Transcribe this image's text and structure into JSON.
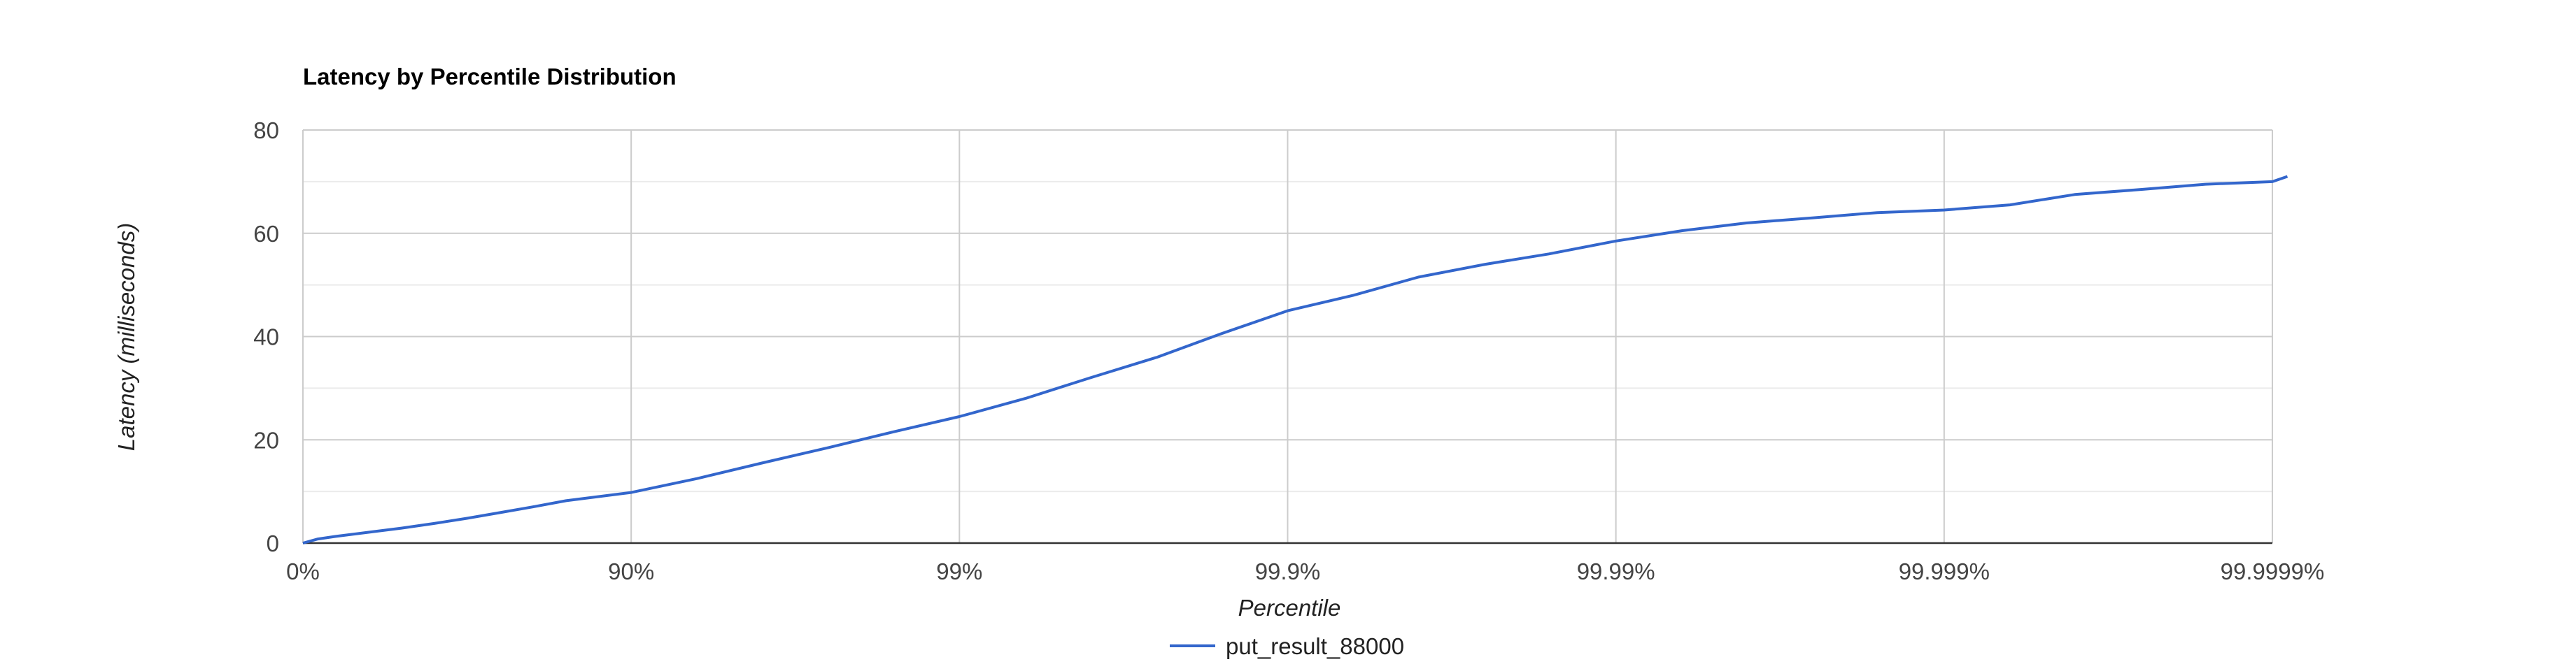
{
  "chart_data": {
    "type": "line",
    "title": "Latency by Percentile Distribution",
    "xlabel": "Percentile",
    "ylabel": "Latency (milliseconds)",
    "x_scale": "log-percentile",
    "x_ticks": [
      "0%",
      "90%",
      "99%",
      "99.9%",
      "99.99%",
      "99.999%",
      "99.9999%"
    ],
    "y_ticks": [
      "0",
      "20",
      "40",
      "60",
      "80"
    ],
    "ylim": [
      0,
      80
    ],
    "grid": true,
    "legend_position": "bottom",
    "series": [
      {
        "name": "put_result_88000",
        "color": "#3366cc",
        "points": [
          {
            "percentile": 0,
            "latency": 0
          },
          {
            "percentile": 10,
            "latency": 0.8
          },
          {
            "percentile": 20.6,
            "latency": 1.3
          },
          {
            "percentile": 36.9,
            "latency": 2.1
          },
          {
            "percentile": 49.9,
            "latency": 2.9
          },
          {
            "percentile": 60.2,
            "latency": 3.8
          },
          {
            "percentile": 68.4,
            "latency": 4.8
          },
          {
            "percentile": 74.9,
            "latency": 5.9
          },
          {
            "percentile": 80.0,
            "latency": 7.0
          },
          {
            "percentile": 84.2,
            "latency": 8.2
          },
          {
            "percentile": 90.0,
            "latency": 9.8
          },
          {
            "percentile": 93.7,
            "latency": 12.5
          },
          {
            "percentile": 96.0,
            "latency": 15.5
          },
          {
            "percentile": 97.5,
            "latency": 18.5
          },
          {
            "percentile": 98.4,
            "latency": 21.5
          },
          {
            "percentile": 99.0,
            "latency": 24.5
          },
          {
            "percentile": 99.37,
            "latency": 28.0
          },
          {
            "percentile": 99.6,
            "latency": 32.0
          },
          {
            "percentile": 99.75,
            "latency": 36.0
          },
          {
            "percentile": 99.84,
            "latency": 40.5
          },
          {
            "percentile": 99.9,
            "latency": 45.0
          },
          {
            "percentile": 99.937,
            "latency": 48.0
          },
          {
            "percentile": 99.96,
            "latency": 51.5
          },
          {
            "percentile": 99.975,
            "latency": 54.0
          },
          {
            "percentile": 99.984,
            "latency": 56.0
          },
          {
            "percentile": 99.99,
            "latency": 58.5
          },
          {
            "percentile": 99.9937,
            "latency": 60.5
          },
          {
            "percentile": 99.996,
            "latency": 62.0
          },
          {
            "percentile": 99.9975,
            "latency": 63.0
          },
          {
            "percentile": 99.9984,
            "latency": 64.0
          },
          {
            "percentile": 99.999,
            "latency": 64.5
          },
          {
            "percentile": 99.99937,
            "latency": 65.5
          },
          {
            "percentile": 99.9996,
            "latency": 67.5
          },
          {
            "percentile": 99.99975,
            "latency": 68.5
          },
          {
            "percentile": 99.99984,
            "latency": 69.5
          },
          {
            "percentile": 99.9999,
            "latency": 70.0
          },
          {
            "percentile": 99.99991,
            "latency": 71.0
          }
        ]
      }
    ]
  }
}
